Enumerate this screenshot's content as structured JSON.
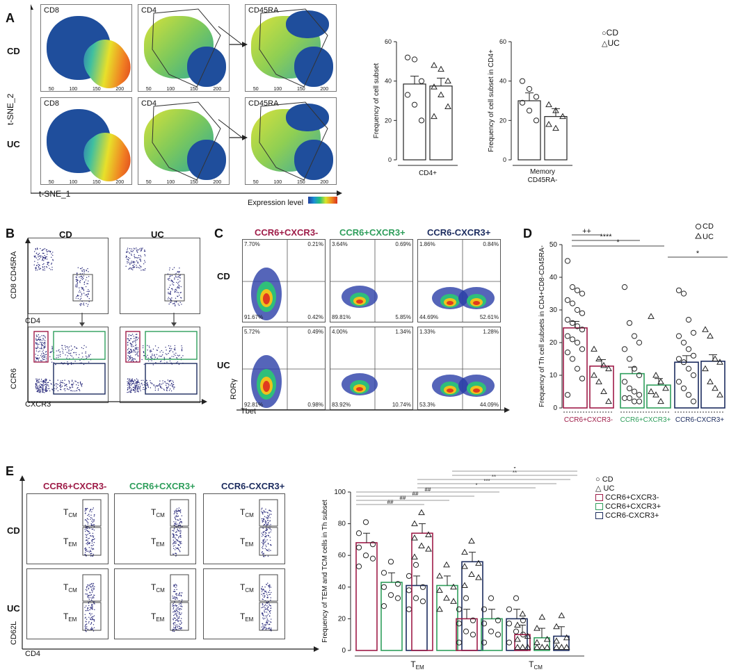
{
  "panels": {
    "A": "A",
    "B": "B",
    "C": "C",
    "D": "D",
    "E": "E"
  },
  "colors": {
    "pink": "#9e1b47",
    "green": "#2e9e5b",
    "navy": "#1b2b5e",
    "cd_marker": "circle",
    "uc_marker": "triangle"
  },
  "A": {
    "row_labels": [
      "CD",
      "UC"
    ],
    "titles": [
      "CD8",
      "CD4",
      "CD45RA"
    ],
    "axis_y": "t-SNE_2",
    "axis_x": "t-SNE_1",
    "ticks": [
      "50",
      "100",
      "150",
      "200"
    ],
    "expression_label": "Expression level",
    "legend_cd": "CD",
    "legend_uc": "UC"
  },
  "B": {
    "col_labels": [
      "CD",
      "UC"
    ],
    "ylabel_top": "CD8 CD45RA",
    "xlabel_top": "CD4",
    "ylabel_bottom": "CCR6",
    "xlabel_bottom": "CXCR3"
  },
  "C": {
    "titles": [
      "CCR6+CXCR3-",
      "CCR6+CXCR3+",
      "CCR6-CXCR3+"
    ],
    "row_labels": [
      "CD",
      "UC"
    ],
    "ylabel": "RORγ",
    "xlabel": "Tbet",
    "quadrants": [
      [
        "7.70%",
        "0.21%",
        "91.67%",
        "0.42%"
      ],
      [
        "3.64%",
        "0.69%",
        "89.81%",
        "5.85%"
      ],
      [
        "1.86%",
        "0.84%",
        "44.69%",
        "52.61%"
      ],
      [
        "5.72%",
        "0.49%",
        "92.81%",
        "0.98%"
      ],
      [
        "4.00%",
        "1.34%",
        "83.92%",
        "10.74%"
      ],
      [
        "1.33%",
        "1.28%",
        "53.3%",
        "44.09%"
      ]
    ]
  },
  "E": {
    "titles": [
      "CCR6+CXCR3-",
      "CCR6+CXCR3+",
      "CCR6-CXCR3+"
    ],
    "row_labels": [
      "CD",
      "UC"
    ],
    "ylabel": "CD62L",
    "xlabel": "CD4",
    "gate_tcm": "TCM",
    "gate_tem": "TEM"
  },
  "chart_data": [
    {
      "type": "bar",
      "id": "A1",
      "categories": [
        "CD4+"
      ],
      "series": [
        {
          "name": "CD",
          "values": [
            38.5
          ]
        },
        {
          "name": "UC",
          "values": [
            37.5
          ]
        }
      ],
      "ylabel": "Frequency of cell subset",
      "ylim": [
        0,
        60
      ],
      "yticks": [
        "0",
        "20",
        "40",
        "60"
      ],
      "points_cd": [
        52,
        51,
        40,
        33,
        28,
        20
      ],
      "points_uc": [
        48,
        46,
        40,
        37,
        33,
        27,
        22
      ]
    },
    {
      "type": "bar",
      "id": "A2",
      "categories": [
        "Memory CD45RA-"
      ],
      "series": [
        {
          "name": "CD",
          "values": [
            30
          ]
        },
        {
          "name": "UC",
          "values": [
            22
          ]
        }
      ],
      "ylabel": "Frequency of cell subset in CD4+",
      "ylim": [
        0,
        60
      ],
      "yticks": [
        "0",
        "20",
        "40",
        "60"
      ],
      "points_cd": [
        40,
        36,
        32,
        29,
        25,
        20
      ],
      "points_uc": [
        28,
        25,
        22,
        18,
        16
      ]
    },
    {
      "type": "bar",
      "id": "D",
      "categories": [
        "CCR6+CXCR3-",
        "CCR6+CXCR3+",
        "CCR6-CXCR3+"
      ],
      "series": [
        {
          "name": "CD",
          "values": [
            24.5,
            10.5,
            14
          ]
        },
        {
          "name": "UC",
          "values": [
            12.8,
            7,
            14.3
          ]
        }
      ],
      "ylabel": "Frequency of Th cell subsets in CD4+CD8-CD45RA-",
      "ylim": [
        0,
        50
      ],
      "yticks": [
        "0",
        "10",
        "20",
        "30",
        "40",
        "50"
      ],
      "significance": [
        "++",
        "****",
        "*",
        "*"
      ],
      "legend": [
        "CD",
        "UC"
      ]
    },
    {
      "type": "bar",
      "id": "E",
      "categories": [
        "TEM",
        "TCM"
      ],
      "series": [
        {
          "name": "CCR6+CXCR3- CD",
          "values": [
            68,
            20
          ]
        },
        {
          "name": "CCR6+CXCR3+ CD",
          "values": [
            43,
            20
          ]
        },
        {
          "name": "CCR6-CXCR3+ CD",
          "values": [
            41,
            20
          ]
        },
        {
          "name": "CCR6+CXCR3- UC",
          "values": [
            74,
            10
          ]
        },
        {
          "name": "CCR6+CXCR3+ UC",
          "values": [
            41,
            8
          ]
        },
        {
          "name": "CCR6-CXCR3+ UC",
          "values": [
            56,
            9
          ]
        }
      ],
      "ylabel": "Frequency of TEM and TCM cells in Th subset",
      "ylim": [
        0,
        100
      ],
      "yticks": [
        "0",
        "20",
        "40",
        "60",
        "80",
        "100"
      ],
      "significance": [
        "##",
        "##",
        "##",
        "##",
        "*",
        "***",
        "**",
        "**",
        "*"
      ],
      "legend": [
        "CD",
        "UC",
        "CCR6+CXCR3-",
        "CCR6+CXCR3+",
        "CCR6-CXCR3+"
      ]
    }
  ]
}
